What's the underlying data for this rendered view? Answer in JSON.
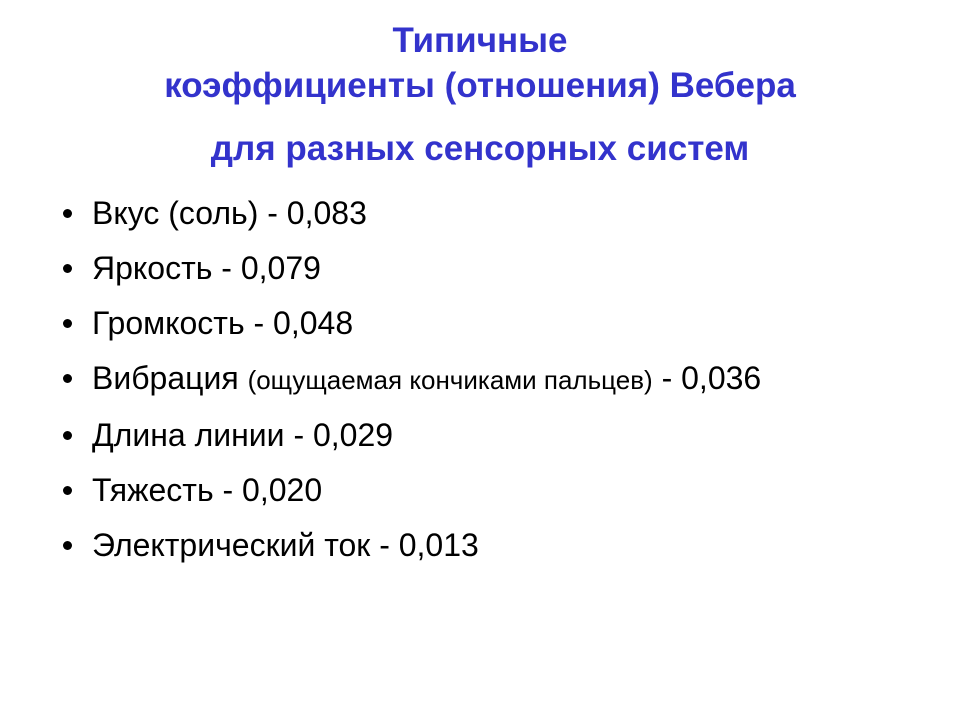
{
  "slide": {
    "background_color": "#ffffff",
    "title": {
      "color": "#3333cc",
      "line1": "Типичные",
      "line2": "коэффициенты (отношения) Вебера",
      "line3": "для разных сенсорных систем"
    },
    "bullets": [
      {
        "text": "Вкус (соль) - 0,083"
      },
      {
        "text": "Яркость - 0,079"
      },
      {
        "text": "Громкость - 0,048"
      },
      {
        "lead": "Вибрация ",
        "note": "(ощущаемая кончиками пальцев)",
        "tail": " - 0,036"
      },
      {
        "text": "Длина линии - 0,029"
      },
      {
        "text": "Тяжесть - 0,020"
      },
      {
        "text": "Электрический ток - 0,013"
      }
    ]
  }
}
